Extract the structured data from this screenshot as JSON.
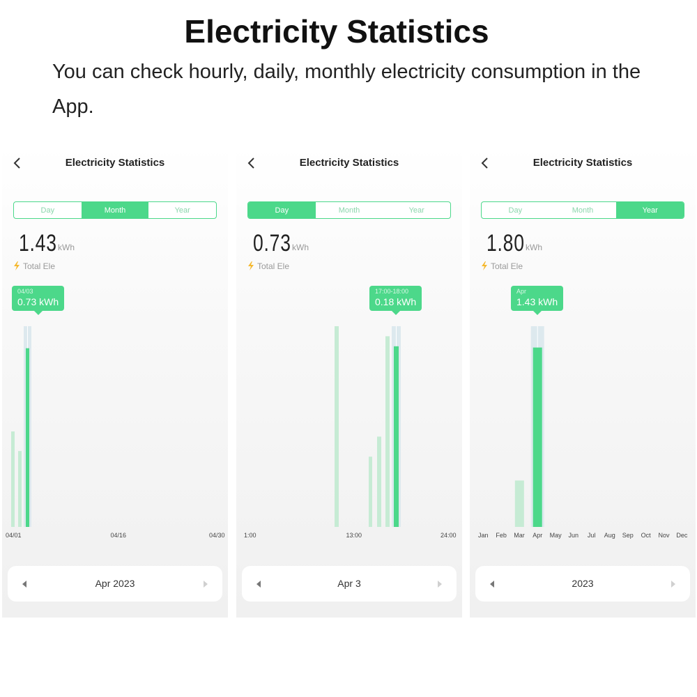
{
  "heading": "Electricity Statistics",
  "description": "You can check hourly, daily, monthly electricity consumption in the App.",
  "colors": {
    "accent": "#4cd88a",
    "bar_faded": "#c6ebd4",
    "highlight_band": "#dde9ee",
    "bolt": "#f5b82e"
  },
  "panels": [
    {
      "nav_title": "Electricity Statistics",
      "tabs": [
        "Day",
        "Month",
        "Year"
      ],
      "active_tab": "Month",
      "total_value": "1.43",
      "total_unit": "kWh",
      "total_label": "Total Ele",
      "tooltip": {
        "date": "04/03",
        "value": "0.73 kWh"
      },
      "x_axis_labels": [
        "04/01",
        "04/16",
        "04/30"
      ],
      "pager_label": "Apr 2023",
      "chart_data": {
        "type": "bar",
        "categories": [
          "04/01",
          "04/02",
          "04/03"
        ],
        "values": [
          0.39,
          0.31,
          0.73
        ],
        "selected": "04/03",
        "ylim": [
          0,
          0.82
        ]
      }
    },
    {
      "nav_title": "Electricity Statistics",
      "tabs": [
        "Day",
        "Month",
        "Year"
      ],
      "active_tab": "Day",
      "total_value": "0.73",
      "total_unit": "kWh",
      "total_label": "Total Ele",
      "tooltip": {
        "date": "17:00-18:00",
        "value": "0.18 kWh"
      },
      "x_axis_labels": [
        "1:00",
        "13:00",
        "24:00"
      ],
      "pager_label": "Apr 3",
      "chart_data": {
        "type": "bar",
        "categories": [
          "11:00-12:00",
          "14:00-15:00",
          "15:00-16:00",
          "16:00-17:00",
          "17:00-18:00"
        ],
        "values": [
          0.2,
          0.07,
          0.09,
          0.19,
          0.18
        ],
        "selected": "17:00-18:00",
        "ylim": [
          0,
          0.2
        ]
      }
    },
    {
      "nav_title": "Electricity Statistics",
      "tabs": [
        "Day",
        "Month",
        "Year"
      ],
      "active_tab": "Year",
      "total_value": "1.80",
      "total_unit": "kWh",
      "total_label": "Total Ele",
      "tooltip": {
        "date": "Apr",
        "value": "1.43 kWh"
      },
      "x_axis_labels": [
        "Jan",
        "Feb",
        "Mar",
        "Apr",
        "May",
        "Jun",
        "Jul",
        "Aug",
        "Sep",
        "Oct",
        "Nov",
        "Dec"
      ],
      "pager_label": "2023",
      "chart_data": {
        "type": "bar",
        "categories": [
          "Jan",
          "Feb",
          "Mar",
          "Apr",
          "May",
          "Jun",
          "Jul",
          "Aug",
          "Sep",
          "Oct",
          "Nov",
          "Dec"
        ],
        "values": [
          0,
          0,
          0.37,
          1.43,
          0,
          0,
          0,
          0,
          0,
          0,
          0,
          0
        ],
        "selected": "Apr",
        "ylim": [
          0,
          1.6
        ]
      }
    }
  ]
}
